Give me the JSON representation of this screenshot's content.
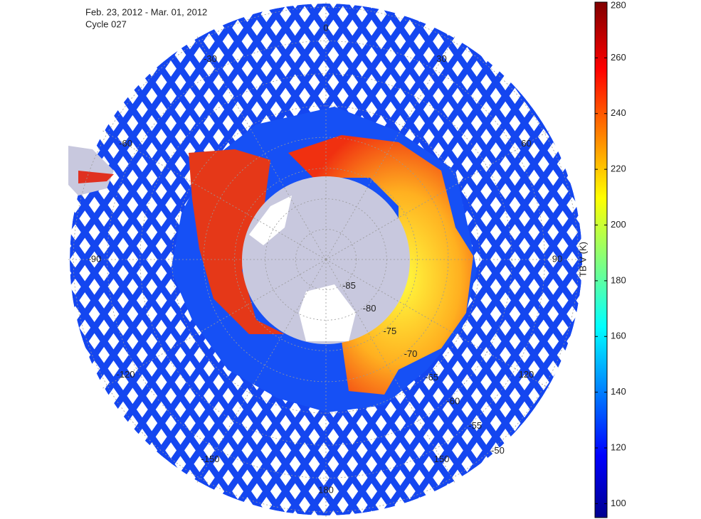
{
  "header": {
    "title": "Feb. 23, 2012 - Mar. 01, 2012",
    "subtitle": "Cycle 027"
  },
  "map": {
    "lon_labels": [
      0,
      30,
      60,
      90,
      120,
      150,
      180,
      -150,
      -120,
      -90,
      -60,
      -30
    ],
    "lat_labels": [
      -85,
      -80,
      -75,
      -70,
      -65,
      -60,
      -55,
      -50
    ]
  },
  "colorbar": {
    "label": "TB V (K)",
    "lim": [
      95,
      280
    ],
    "ticks": [
      100,
      120,
      140,
      160,
      180,
      200,
      220,
      240,
      260,
      280
    ]
  }
}
